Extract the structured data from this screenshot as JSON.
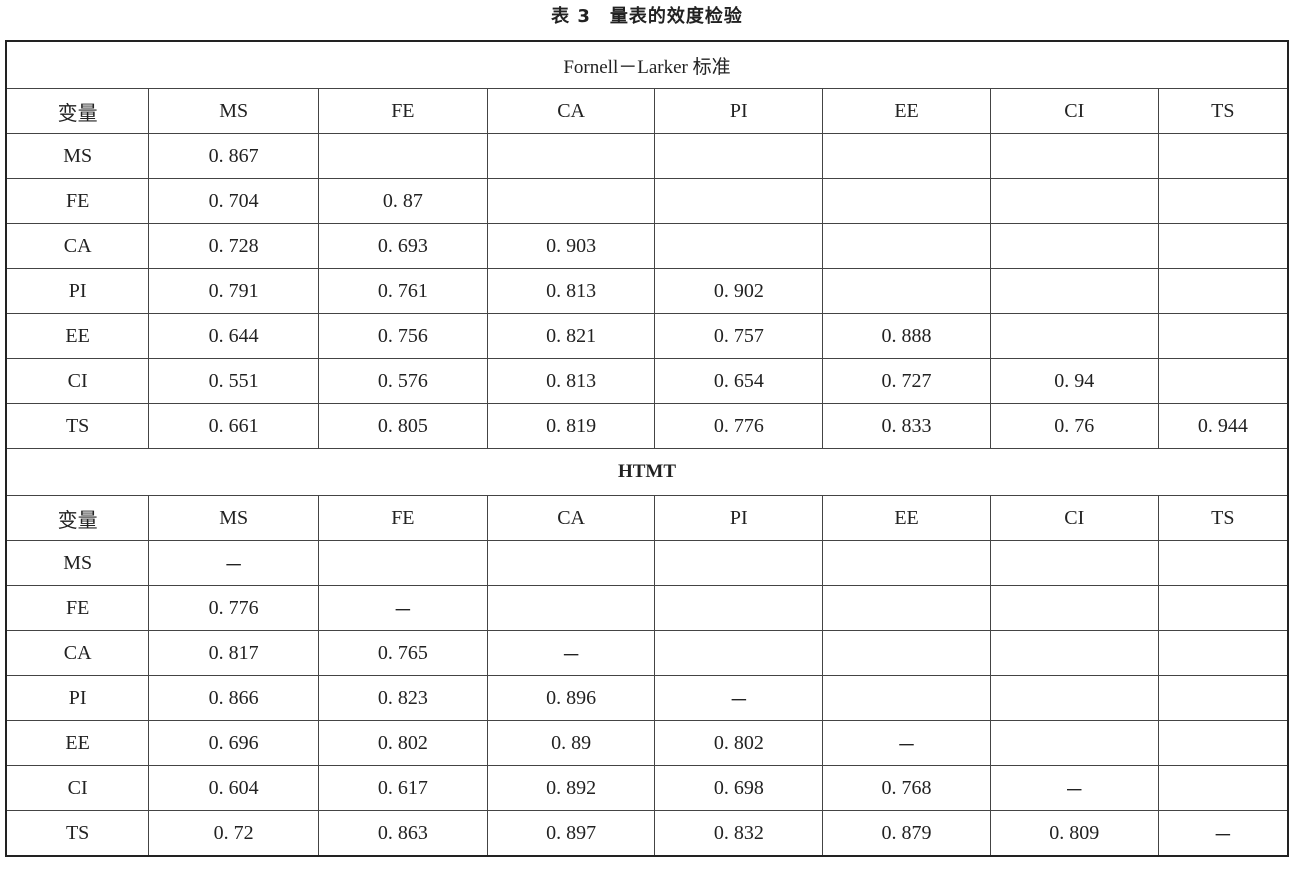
{
  "title": "表 3　量表的效度检验",
  "sections": [
    {
      "label": "Fornell－Larker 标准",
      "bold": false,
      "header": [
        "变量",
        "MS",
        "FE",
        "CA",
        "PI",
        "EE",
        "CI",
        "TS"
      ],
      "rows": [
        [
          "MS",
          "0. 867",
          "",
          "",
          "",
          "",
          "",
          ""
        ],
        [
          "FE",
          "0. 704",
          "0. 87",
          "",
          "",
          "",
          "",
          ""
        ],
        [
          "CA",
          "0. 728",
          "0. 693",
          "0. 903",
          "",
          "",
          "",
          ""
        ],
        [
          "PI",
          "0. 791",
          "0. 761",
          "0. 813",
          "0. 902",
          "",
          "",
          ""
        ],
        [
          "EE",
          "0. 644",
          "0. 756",
          "0. 821",
          "0. 757",
          "0. 888",
          "",
          ""
        ],
        [
          "CI",
          "0. 551",
          "0. 576",
          "0. 813",
          "0. 654",
          "0. 727",
          "0. 94",
          ""
        ],
        [
          "TS",
          "0. 661",
          "0. 805",
          "0. 819",
          "0. 776",
          "0. 833",
          "0. 76",
          "0. 944"
        ]
      ]
    },
    {
      "label": "HTMT",
      "bold": true,
      "header": [
        "变量",
        "MS",
        "FE",
        "CA",
        "PI",
        "EE",
        "CI",
        "TS"
      ],
      "rows": [
        [
          "MS",
          "－",
          "",
          "",
          "",
          "",
          "",
          ""
        ],
        [
          "FE",
          "0. 776",
          "－",
          "",
          "",
          "",
          "",
          ""
        ],
        [
          "CA",
          "0. 817",
          "0. 765",
          "－",
          "",
          "",
          "",
          ""
        ],
        [
          "PI",
          "0. 866",
          "0. 823",
          "0. 896",
          "－",
          "",
          "",
          ""
        ],
        [
          "EE",
          "0. 696",
          "0. 802",
          "0. 89",
          "0. 802",
          "－",
          "",
          ""
        ],
        [
          "CI",
          "0. 604",
          "0. 617",
          "0. 892",
          "0. 698",
          "0. 768",
          "－",
          ""
        ],
        [
          "TS",
          "0. 72",
          "0. 863",
          "0. 897",
          "0. 832",
          "0. 879",
          "0. 809",
          "－"
        ]
      ]
    }
  ]
}
